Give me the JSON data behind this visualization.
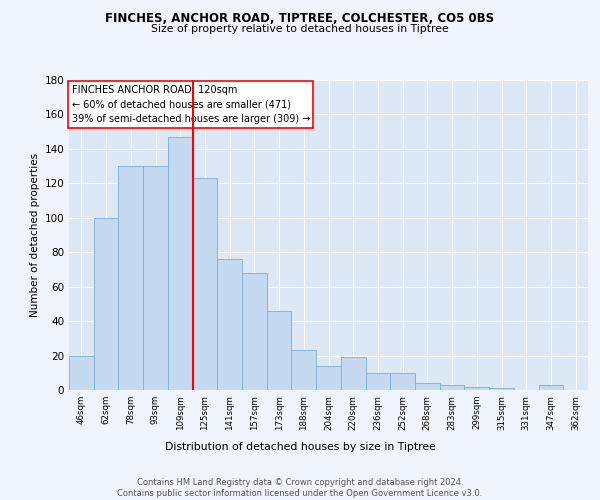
{
  "title1": "FINCHES, ANCHOR ROAD, TIPTREE, COLCHESTER, CO5 0BS",
  "title2": "Size of property relative to detached houses in Tiptree",
  "xlabel": "Distribution of detached houses by size in Tiptree",
  "ylabel": "Number of detached properties",
  "categories": [
    "46sqm",
    "62sqm",
    "78sqm",
    "93sqm",
    "109sqm",
    "125sqm",
    "141sqm",
    "157sqm",
    "173sqm",
    "188sqm",
    "204sqm",
    "220sqm",
    "236sqm",
    "252sqm",
    "268sqm",
    "283sqm",
    "299sqm",
    "315sqm",
    "331sqm",
    "347sqm",
    "362sqm"
  ],
  "values": [
    20,
    100,
    130,
    130,
    147,
    123,
    76,
    68,
    46,
    23,
    14,
    19,
    10,
    10,
    4,
    3,
    2,
    1,
    0,
    3,
    0
  ],
  "bar_color": "#c5d9f0",
  "bar_edge_color": "#7aadd4",
  "redline_x": 4.5,
  "annotation_title": "FINCHES ANCHOR ROAD: 120sqm",
  "annotation_line1": "← 60% of detached houses are smaller (471)",
  "annotation_line2": "39% of semi-detached houses are larger (309) →",
  "ylim": [
    0,
    180
  ],
  "yticks": [
    0,
    20,
    40,
    60,
    80,
    100,
    120,
    140,
    160,
    180
  ],
  "footer": "Contains HM Land Registry data © Crown copyright and database right 2024.\nContains public sector information licensed under the Open Government Licence v3.0.",
  "fig_bg_color": "#f0f4fc",
  "plot_bg_color": "#dce8f5"
}
